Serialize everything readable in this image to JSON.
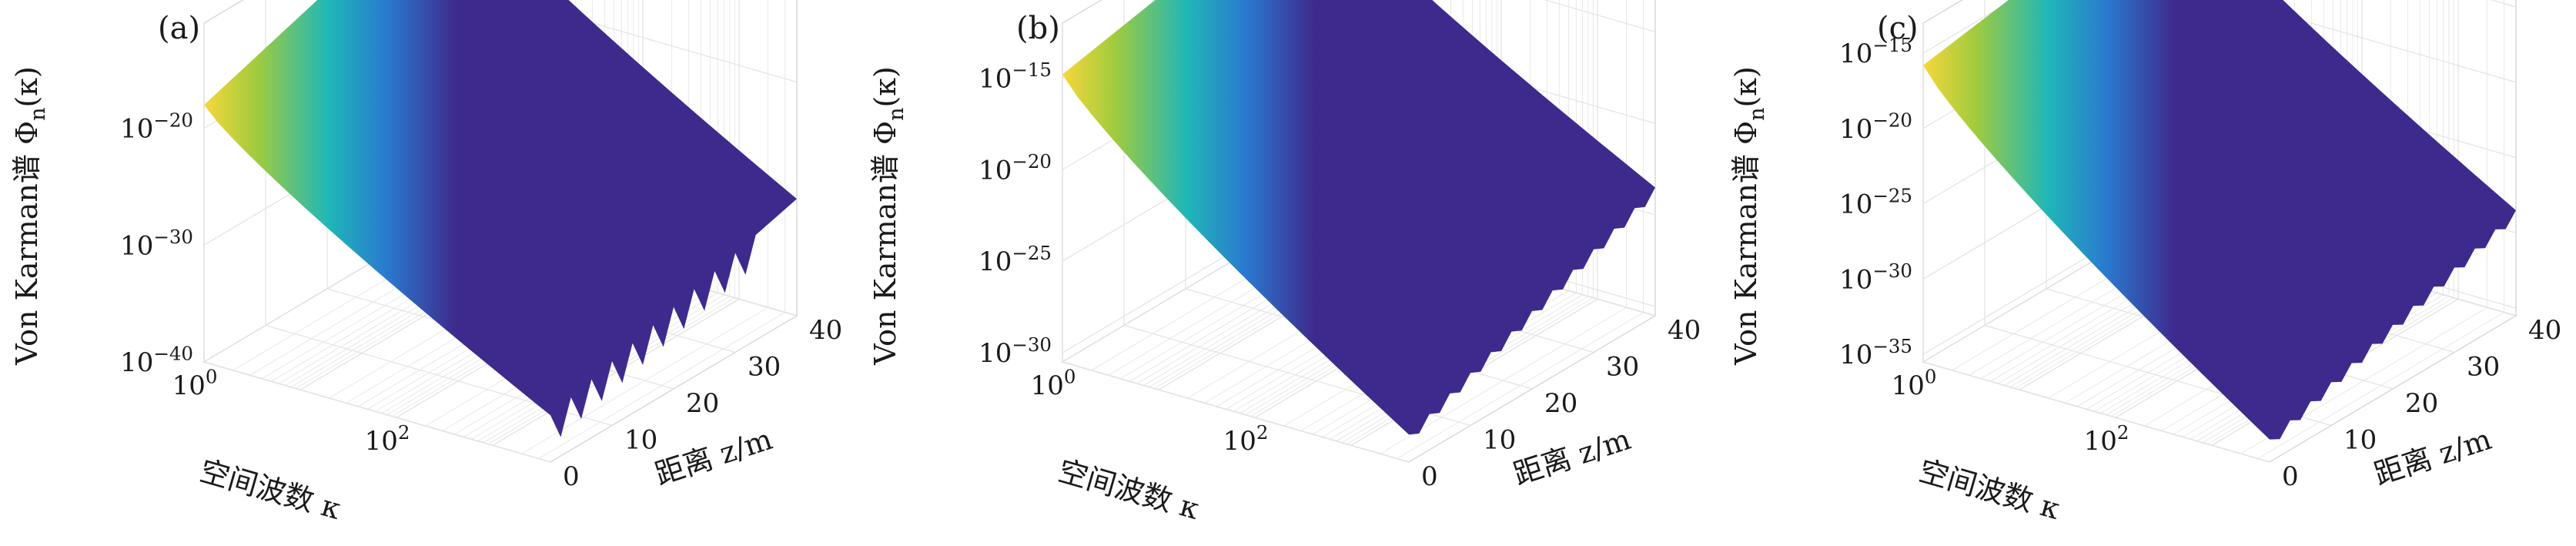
{
  "chart_data": [
    {
      "type": "surface",
      "panel_label": "(a)",
      "zlabel": "Von Karman谱 Φ",
      "zlabel_sub": "n",
      "zlabel_arg": "(κ)",
      "xlabel": "空间波数 κ",
      "ylabel": "距离 z/m",
      "x_scale": "log",
      "x_ticks": [
        {
          "label": "10",
          "exp": "0",
          "value": 1
        },
        {
          "label": "10",
          "exp": "2",
          "value": 100
        }
      ],
      "y_ticks": [
        {
          "label": "0",
          "value": 0
        },
        {
          "label": "10",
          "value": 10
        },
        {
          "label": "20",
          "value": 20
        },
        {
          "label": "30",
          "value": 30
        },
        {
          "label": "40",
          "value": 40
        }
      ],
      "z_scale": "log",
      "z_ticks": [
        {
          "label": "10",
          "exp": "−20",
          "value": -20
        },
        {
          "label": "10",
          "exp": "−30",
          "value": -30
        },
        {
          "label": "10",
          "exp": "−40",
          "value": -40
        }
      ],
      "z_range": [
        -40,
        -11
      ],
      "colormap": [
        "#3e2a8d",
        "#2a79cf",
        "#1fb7b8",
        "#9fcb3e",
        "#f7d73b"
      ],
      "grid": true
    },
    {
      "type": "surface",
      "panel_label": "(b)",
      "zlabel": "Von Karman谱 Φ",
      "zlabel_sub": "n",
      "zlabel_arg": "(κ)",
      "xlabel": "空间波数 κ",
      "ylabel": "距离 z/m",
      "x_scale": "log",
      "x_ticks": [
        {
          "label": "10",
          "exp": "0",
          "value": 1
        },
        {
          "label": "10",
          "exp": "2",
          "value": 100
        }
      ],
      "y_ticks": [
        {
          "label": "0",
          "value": 0
        },
        {
          "label": "10",
          "value": 10
        },
        {
          "label": "20",
          "value": 20
        },
        {
          "label": "30",
          "value": 30
        },
        {
          "label": "40",
          "value": 40
        }
      ],
      "z_scale": "log",
      "z_ticks": [
        {
          "label": "10",
          "exp": "−15",
          "value": -15
        },
        {
          "label": "10",
          "exp": "−20",
          "value": -20
        },
        {
          "label": "10",
          "exp": "−25",
          "value": -25
        },
        {
          "label": "10",
          "exp": "−30",
          "value": -30
        }
      ],
      "z_range": [
        -30.5,
        -12
      ],
      "colormap": [
        "#3e2a8d",
        "#2a79cf",
        "#1fb7b8",
        "#9fcb3e",
        "#f7d73b"
      ],
      "grid": true
    },
    {
      "type": "surface",
      "panel_label": "(c)",
      "zlabel": "Von Karman谱 Φ",
      "zlabel_sub": "n",
      "zlabel_arg": "(κ)",
      "xlabel": "空间波数 κ",
      "ylabel": "距离 z/m",
      "x_scale": "log",
      "x_ticks": [
        {
          "label": "10",
          "exp": "0",
          "value": 1
        },
        {
          "label": "10",
          "exp": "2",
          "value": 100
        }
      ],
      "y_ticks": [
        {
          "label": "0",
          "value": 0
        },
        {
          "label": "10",
          "value": 10
        },
        {
          "label": "20",
          "value": 20
        },
        {
          "label": "30",
          "value": 30
        },
        {
          "label": "40",
          "value": 40
        }
      ],
      "z_scale": "log",
      "z_ticks": [
        {
          "label": "10",
          "exp": "−15",
          "value": -15
        },
        {
          "label": "10",
          "exp": "−20",
          "value": -20
        },
        {
          "label": "10",
          "exp": "−25",
          "value": -25
        },
        {
          "label": "10",
          "exp": "−30",
          "value": -30
        },
        {
          "label": "10",
          "exp": "−35",
          "value": -35
        }
      ],
      "z_range": [
        -35.5,
        -13
      ],
      "colormap": [
        "#3e2a8d",
        "#2a79cf",
        "#1fb7b8",
        "#9fcb3e",
        "#f7d73b"
      ],
      "grid": true
    }
  ]
}
